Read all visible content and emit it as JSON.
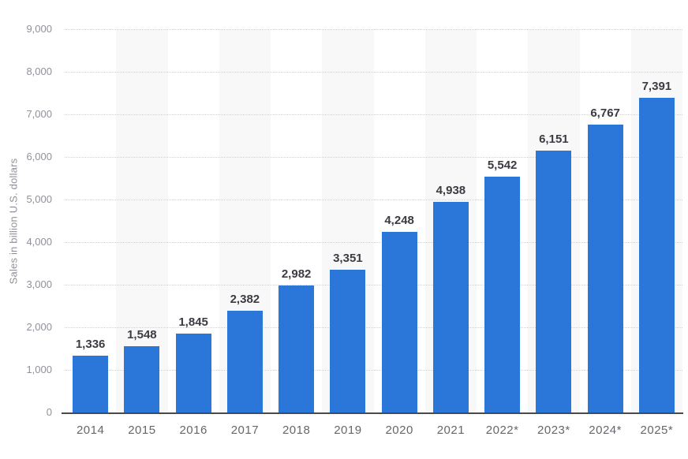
{
  "chart_data": {
    "type": "bar",
    "title": "",
    "categories": [
      "2014",
      "2015",
      "2016",
      "2017",
      "2018",
      "2019",
      "2020",
      "2021",
      "2022*",
      "2023*",
      "2024*",
      "2025*"
    ],
    "values": [
      1336,
      1548,
      1845,
      2382,
      2982,
      3351,
      4248,
      4938,
      5542,
      6151,
      6767,
      7391
    ],
    "value_labels": [
      "1,336",
      "1,548",
      "1,845",
      "2,382",
      "2,982",
      "3,351",
      "4,248",
      "4,938",
      "5,542",
      "6,151",
      "6,767",
      "7,391"
    ],
    "xlabel": "",
    "ylabel": "Sales in billion U.S. dollars",
    "ylim": [
      0,
      9000
    ],
    "ytick_interval": 1000,
    "ytick_labels": [
      "0",
      "1,000",
      "2,000",
      "3,000",
      "4,000",
      "5,000",
      "6,000",
      "7,000",
      "8,000",
      "9,000"
    ],
    "grid": "horizontal-dotted",
    "legend": "none",
    "plot_bands": "alternating category background stripes",
    "colors": {
      "bar": "#2a76d9",
      "band": "#f8f8f9",
      "gridline": "#d2d2d2",
      "axis_line": "#4a4a4a",
      "value_label": "#3b3b42",
      "x_tick_label": "#66666e",
      "y_tick_label": "#90909a",
      "y_axis_title": "#90909a",
      "background": "#ffffff"
    }
  }
}
